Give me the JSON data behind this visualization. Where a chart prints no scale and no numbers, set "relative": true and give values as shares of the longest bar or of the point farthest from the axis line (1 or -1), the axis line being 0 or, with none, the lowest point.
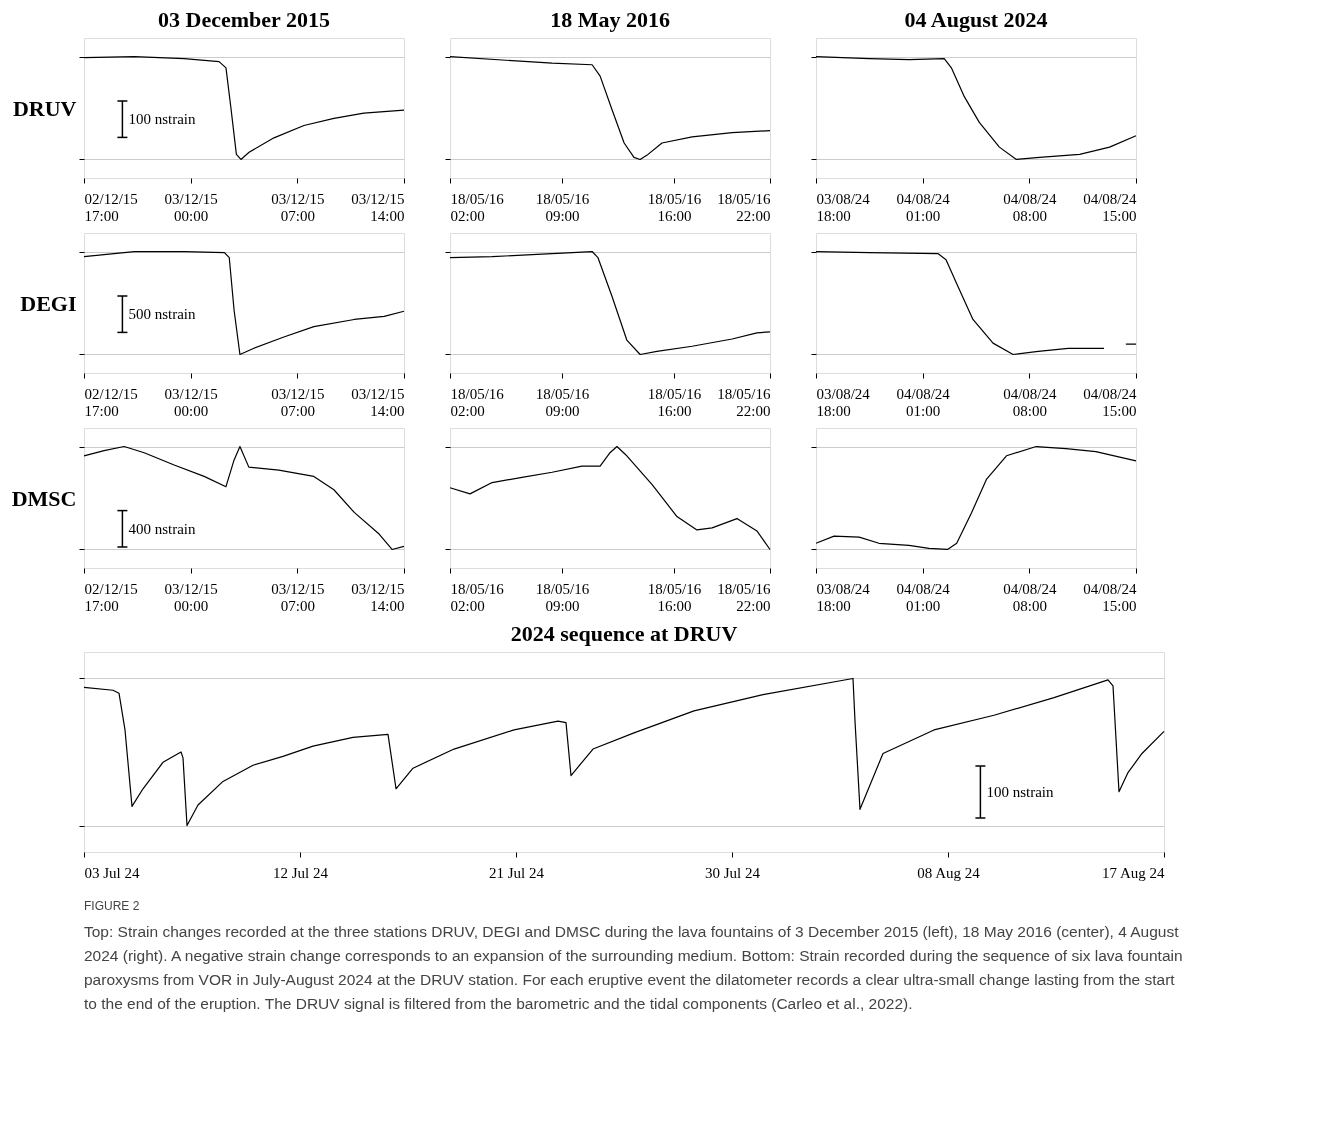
{
  "chart_data": [
    {
      "type": "line",
      "title": "03 December 2015",
      "ylabel": "DRUV",
      "relative": true,
      "grid": "y",
      "annotations": [
        "100 nstrain"
      ],
      "xlim": [
        "2015-12-02T17:00",
        "2015-12-03T14:00"
      ],
      "xticks": [
        {
          "value": "2015-12-02T17:00",
          "label": "02/12/15\n17:00"
        },
        {
          "value": "2015-12-03T00:00",
          "label": "03/12/15\n00:00"
        },
        {
          "value": "2015-12-03T07:00",
          "label": "03/12/15\n07:00"
        },
        {
          "value": "2015-12-03T14:00",
          "label": "03/12/15\n14:00"
        }
      ],
      "series": [
        {
          "color": "#000000",
          "x": [
            "2015-12-02T17:00",
            "2015-12-02T20:18",
            "2015-12-02T23:34",
            "2015-12-03T01:52",
            "2015-12-03T02:19",
            "2015-12-03T02:39",
            "2015-12-03T03:00",
            "2015-12-03T03:18",
            "2015-12-03T03:50",
            "2015-12-03T05:28",
            "2015-12-03T07:26",
            "2015-12-03T09:24",
            "2015-12-03T11:22",
            "2015-12-03T14:00"
          ],
          "values": [
            0.99,
            1,
            0.98,
            0.95,
            0.89,
            0.49,
            0.05,
            0,
            0.07,
            0.21,
            0.33,
            0.4,
            0.45,
            0.48
          ]
        }
      ]
    },
    {
      "type": "line",
      "title": "18 May 2016",
      "relative": true,
      "grid": "y",
      "xlim": [
        "2016-05-18T02:00",
        "2016-05-18T22:00"
      ],
      "xticks": [
        {
          "value": "2016-05-18T02:00",
          "label": "18/05/16\n02:00"
        },
        {
          "value": "2016-05-18T09:00",
          "label": "18/05/16\n09:00"
        },
        {
          "value": "2016-05-18T16:00",
          "label": "18/05/16\n16:00"
        },
        {
          "value": "2016-05-18T22:00",
          "label": "18/05/16\n22:00"
        }
      ],
      "series": [
        {
          "color": "#000000",
          "x": [
            "2016-05-18T02:00",
            "2016-05-18T05:53",
            "2016-05-18T08:23",
            "2016-05-18T10:53",
            "2016-05-18T11:23",
            "2016-05-18T12:08",
            "2016-05-18T12:53",
            "2016-05-18T13:30",
            "2016-05-18T13:53",
            "2016-05-18T14:18",
            "2016-05-18T15:15",
            "2016-05-18T17:08",
            "2016-05-18T19:38",
            "2016-05-18T22:00"
          ],
          "values": [
            1,
            0.96,
            0.935,
            0.92,
            0.81,
            0.48,
            0.16,
            0.02,
            0,
            0.04,
            0.16,
            0.22,
            0.26,
            0.28
          ]
        }
      ]
    },
    {
      "type": "line",
      "title": "04 August 2024",
      "relative": true,
      "grid": "y",
      "xlim": [
        "2024-08-03T18:00",
        "2024-08-04T15:00"
      ],
      "xticks": [
        {
          "value": "2024-08-03T18:00",
          "label": "03/08/24\n18:00"
        },
        {
          "value": "2024-08-04T01:00",
          "label": "04/08/24\n01:00"
        },
        {
          "value": "2024-08-04T08:00",
          "label": "04/08/24\n08:00"
        },
        {
          "value": "2024-08-04T15:00",
          "label": "04/08/24\n15:00"
        }
      ],
      "series": [
        {
          "color": "#000000",
          "x": [
            "2024-08-03T18:00",
            "2024-08-03T21:29",
            "2024-08-04T00:07",
            "2024-08-04T02:25",
            "2024-08-04T02:53",
            "2024-08-04T03:44",
            "2024-08-04T04:43",
            "2024-08-04T06:02",
            "2024-08-04T07:09",
            "2024-08-04T08:40",
            "2024-08-04T11:18",
            "2024-08-04T13:16",
            "2024-08-04T15:00"
          ],
          "values": [
            1,
            0.98,
            0.97,
            0.98,
            0.89,
            0.61,
            0.36,
            0.12,
            0,
            0.02,
            0.05,
            0.12,
            0.23
          ]
        }
      ]
    },
    {
      "type": "line",
      "ylabel": "DEGI",
      "relative": true,
      "grid": "y",
      "annotations": [
        "500 nstrain"
      ],
      "xlim": [
        "2015-12-02T17:00",
        "2015-12-03T14:00"
      ],
      "xticks": [
        {
          "value": "2015-12-02T17:00",
          "label": "02/12/15\n17:00"
        },
        {
          "value": "2015-12-03T00:00",
          "label": "03/12/15\n00:00"
        },
        {
          "value": "2015-12-03T07:00",
          "label": "03/12/15\n07:00"
        },
        {
          "value": "2015-12-03T14:00",
          "label": "03/12/15\n14:00"
        }
      ],
      "series": [
        {
          "color": "#000000",
          "x": [
            "2015-12-02T17:00",
            "2015-12-02T18:19",
            "2015-12-02T20:18",
            "2015-12-02T23:34",
            "2015-12-03T02:13",
            "2015-12-03T02:32",
            "2015-12-03T02:51",
            "2015-12-03T03:14",
            "2015-12-03T04:09",
            "2015-12-03T06:07",
            "2015-12-03T08:05",
            "2015-12-03T10:44",
            "2015-12-03T12:42",
            "2015-12-03T14:00"
          ],
          "values": [
            0.95,
            0.97,
            1,
            1,
            0.99,
            0.94,
            0.43,
            0,
            0.06,
            0.17,
            0.27,
            0.34,
            0.37,
            0.42
          ]
        }
      ]
    },
    {
      "type": "line",
      "relative": true,
      "grid": "y",
      "xlim": [
        "2016-05-18T02:00",
        "2016-05-18T22:00"
      ],
      "xticks": [
        {
          "value": "2016-05-18T02:00",
          "label": "18/05/16\n02:00"
        },
        {
          "value": "2016-05-18T09:00",
          "label": "18/05/16\n09:00"
        },
        {
          "value": "2016-05-18T16:00",
          "label": "18/05/16\n16:00"
        },
        {
          "value": "2016-05-18T22:00",
          "label": "18/05/16\n22:00"
        }
      ],
      "series": [
        {
          "color": "#000000",
          "x": [
            "2016-05-18T02:00",
            "2016-05-18T04:38",
            "2016-05-18T07:08",
            "2016-05-18T09:38",
            "2016-05-18T10:53",
            "2016-05-18T11:15",
            "2016-05-18T12:08",
            "2016-05-18T13:03",
            "2016-05-18T13:53",
            "2016-05-18T14:56",
            "2016-05-18T17:08",
            "2016-05-18T19:38",
            "2016-05-18T21:11",
            "2016-05-18T22:00"
          ],
          "values": [
            0.94,
            0.95,
            0.97,
            0.99,
            1,
            0.94,
            0.56,
            0.14,
            0,
            0.03,
            0.08,
            0.15,
            0.21,
            0.22
          ]
        }
      ]
    },
    {
      "type": "line",
      "relative": true,
      "grid": "y",
      "xlim": [
        "2024-08-03T18:00",
        "2024-08-04T15:00"
      ],
      "xticks": [
        {
          "value": "2024-08-03T18:00",
          "label": "03/08/24\n18:00"
        },
        {
          "value": "2024-08-04T01:00",
          "label": "04/08/24\n01:00"
        },
        {
          "value": "2024-08-04T08:00",
          "label": "04/08/24\n08:00"
        },
        {
          "value": "2024-08-04T15:00",
          "label": "04/08/24\n15:00"
        }
      ],
      "series": [
        {
          "color": "#000000",
          "x": [
            "2024-08-03T18:00",
            "2024-08-03T21:29",
            "2024-08-04T02:00",
            "2024-08-04T02:32",
            "2024-08-04T03:19",
            "2024-08-04T04:18",
            "2024-08-04T05:37",
            "2024-08-04T06:56",
            "2024-08-04T08:35",
            "2024-08-04T10:33",
            "2024-08-04T12:54",
            "2024-08-04T13:40",
            "2024-08-04T14:20",
            "2024-08-04T15:00"
          ],
          "values": [
            1,
            0.99,
            0.98,
            0.92,
            0.66,
            0.34,
            0.11,
            0,
            0.03,
            0.06,
            0.06,
            null,
            0.1,
            0.1
          ]
        }
      ]
    },
    {
      "type": "line",
      "ylabel": "DMSC",
      "relative": true,
      "grid": "y",
      "annotations": [
        "400 nstrain"
      ],
      "xlim": [
        "2015-12-02T17:00",
        "2015-12-03T14:00"
      ],
      "xticks": [
        {
          "value": "2015-12-02T17:00",
          "label": "02/12/15\n17:00"
        },
        {
          "value": "2015-12-03T00:00",
          "label": "03/12/15\n00:00"
        },
        {
          "value": "2015-12-03T07:00",
          "label": "03/12/15\n07:00"
        },
        {
          "value": "2015-12-03T14:00",
          "label": "03/12/15\n14:00"
        }
      ],
      "series": [
        {
          "color": "#000000",
          "x": [
            "2015-12-02T17:00",
            "2015-12-02T18:19",
            "2015-12-02T19:38",
            "2015-12-02T20:57",
            "2015-12-02T22:55",
            "2015-12-03T00:53",
            "2015-12-03T02:19",
            "2015-12-03T02:51",
            "2015-12-03T03:14",
            "2015-12-03T03:49",
            "2015-12-03T05:47",
            "2015-12-03T08:05",
            "2015-12-03T09:24",
            "2015-12-03T10:44",
            "2015-12-03T12:22",
            "2015-12-03T13:13",
            "2015-12-03T14:00"
          ],
          "values": [
            0.91,
            0.96,
            1,
            0.94,
            0.82,
            0.71,
            0.61,
            0.87,
            1,
            0.8,
            0.77,
            0.71,
            0.58,
            0.36,
            0.15,
            0,
            0.03
          ]
        }
      ]
    },
    {
      "type": "line",
      "relative": true,
      "grid": "y",
      "xlim": [
        "2016-05-18T02:00",
        "2016-05-18T22:00"
      ],
      "xticks": [
        {
          "value": "2016-05-18T02:00",
          "label": "18/05/16\n02:00"
        },
        {
          "value": "2016-05-18T09:00",
          "label": "18/05/16\n09:00"
        },
        {
          "value": "2016-05-18T16:00",
          "label": "18/05/16\n16:00"
        },
        {
          "value": "2016-05-18T22:00",
          "label": "18/05/16\n22:00"
        }
      ],
      "series": [
        {
          "color": "#000000",
          "x": [
            "2016-05-18T02:00",
            "2016-05-18T03:15",
            "2016-05-18T04:38",
            "2016-05-18T06:30",
            "2016-05-18T08:23",
            "2016-05-18T10:15",
            "2016-05-18T11:23",
            "2016-05-18T12:00",
            "2016-05-18T12:26",
            "2016-05-18T13:03",
            "2016-05-18T14:38",
            "2016-05-18T16:11",
            "2016-05-18T17:26",
            "2016-05-18T18:23",
            "2016-05-18T19:56",
            "2016-05-18T21:11",
            "2016-05-18T22:00"
          ],
          "values": [
            0.6,
            0.54,
            0.65,
            0.7,
            0.75,
            0.81,
            0.81,
            0.94,
            1,
            0.91,
            0.63,
            0.32,
            0.19,
            0.21,
            0.3,
            0.18,
            0
          ]
        }
      ]
    },
    {
      "type": "line",
      "relative": true,
      "grid": "y",
      "xlim": [
        "2024-08-03T18:00",
        "2024-08-04T15:00"
      ],
      "xticks": [
        {
          "value": "2024-08-03T18:00",
          "label": "03/08/24\n18:00"
        },
        {
          "value": "2024-08-04T01:00",
          "label": "04/08/24\n01:00"
        },
        {
          "value": "2024-08-04T08:00",
          "label": "04/08/24\n08:00"
        },
        {
          "value": "2024-08-04T15:00",
          "label": "04/08/24\n15:00"
        }
      ],
      "series": [
        {
          "color": "#000000",
          "x": [
            "2024-08-03T18:00",
            "2024-08-03T19:11",
            "2024-08-03T20:50",
            "2024-08-03T22:08",
            "2024-08-04T00:06",
            "2024-08-04T01:25",
            "2024-08-04T02:38",
            "2024-08-04T03:14",
            "2024-08-04T04:13",
            "2024-08-04T05:11",
            "2024-08-04T06:30",
            "2024-08-04T08:27",
            "2024-08-04T10:24",
            "2024-08-04T12:22",
            "2024-08-04T15:00"
          ],
          "values": [
            0.06,
            0.13,
            0.12,
            0.06,
            0.04,
            0.01,
            0,
            0.06,
            0.36,
            0.68,
            0.91,
            1,
            0.98,
            0.95,
            0.86
          ]
        }
      ]
    },
    {
      "type": "line",
      "title": "2024 sequence at DRUV",
      "relative": true,
      "grid": "y",
      "annotations": [
        "100 nstrain"
      ],
      "xlim": [
        "2024-07-03",
        "2024-08-17"
      ],
      "xticks": [
        {
          "value": "2024-07-03",
          "label": "03 Jul 24"
        },
        {
          "value": "2024-07-12",
          "label": "12 Jul 24"
        },
        {
          "value": "2024-07-21",
          "label": "21 Jul 24"
        },
        {
          "value": "2024-07-30",
          "label": "30 Jul 24"
        },
        {
          "value": "2024-08-08",
          "label": "08 Aug 24"
        },
        {
          "value": "2024-08-17",
          "label": "17 Aug 24"
        }
      ],
      "series": [
        {
          "color": "#000000",
          "x": [
            "2024-07-03T00:00",
            "2024-07-04T05:00",
            "2024-07-04T11:00",
            "2024-07-04T17:00",
            "2024-07-05T00:00",
            "2024-07-05T11:00",
            "2024-07-06T07:00",
            "2024-07-07T01:00",
            "2024-07-07T03:00",
            "2024-07-07T07:00",
            "2024-07-07T18:00",
            "2024-07-08T19:00",
            "2024-07-10T01:00",
            "2024-07-11T07:00",
            "2024-07-12T13:00",
            "2024-07-14T05:00",
            "2024-07-15T16:00",
            "2024-07-15T21:00",
            "2024-07-16T00:00",
            "2024-07-16T17:00",
            "2024-07-18T10:00",
            "2024-07-20T22:00",
            "2024-07-22T18:00",
            "2024-07-23T02:00",
            "2024-07-23T07:00",
            "2024-07-24T05:00",
            "2024-07-25T22:00",
            "2024-07-28T10:00",
            "2024-07-31T07:00",
            "2024-08-04T01:00",
            "2024-08-04T03:00",
            "2024-08-04T08:00",
            "2024-08-05T07:00",
            "2024-08-07T10:00",
            "2024-08-09T22:00",
            "2024-08-12T10:00",
            "2024-08-14T16:00",
            "2024-08-14T21:00",
            "2024-08-15T03:00",
            "2024-08-15T12:00",
            "2024-08-16T02:00",
            "2024-08-17T00:00"
          ],
          "values": [
            0.94,
            0.92,
            0.9,
            0.65,
            0.13,
            0.25,
            0.43,
            0.5,
            0.46,
            0,
            0.14,
            0.3,
            0.41,
            0.47,
            0.54,
            0.6,
            0.62,
            0.39,
            0.25,
            0.39,
            0.52,
            0.65,
            0.71,
            0.7,
            0.34,
            0.52,
            0.63,
            0.78,
            0.89,
            1,
            0.71,
            0.11,
            0.49,
            0.65,
            0.75,
            0.87,
            0.99,
            0.95,
            0.23,
            0.36,
            0.49,
            0.64
          ]
        }
      ]
    },
    {
      "type": "other",
      "annotations": [
        "FIGURE 2",
        "Top: Strain changes recorded at the three stations DRUV, DEGI and DMSC during the lava fountains of 3 December 2015 (left), 18 May 2016 (center), 4 August 2024 (right). A negative strain change corresponds to an expansion of the surrounding medium. Bottom: Strain recorded during the sequence of six lava fountain paroxysms from VOR in July-August 2024 at the DRUV station. For each eruptive event the dilatometer records a clear ultra-small change lasting from the start to the end of the eruption. The DRUV signal is filtered from the barometric and the tidal components (Carleo et al., 2022)."
      ]
    }
  ]
}
